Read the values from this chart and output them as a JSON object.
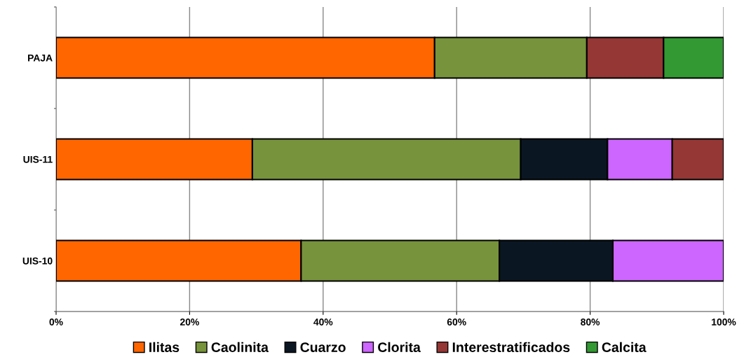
{
  "chart_data": {
    "type": "bar",
    "orientation": "horizontal",
    "stacked": true,
    "categories": [
      "PAJA",
      "UIS-11",
      "UIS-10"
    ],
    "series": [
      {
        "name": "Ilitas",
        "color": "#ff6600",
        "values": [
          56.7,
          29.4,
          36.7
        ]
      },
      {
        "name": "Caolinita",
        "color": "#77933c",
        "values": [
          22.8,
          40.2,
          29.7
        ]
      },
      {
        "name": "Cuarzo",
        "color": "#0b1623",
        "values": [
          null,
          13.0,
          17.0
        ]
      },
      {
        "name": "Clorita",
        "color": "#cc66ff",
        "values": [
          null,
          9.7,
          16.6
        ]
      },
      {
        "name": "Interestratificados",
        "color": "#953735",
        "values": [
          11.5,
          7.7,
          null
        ]
      },
      {
        "name": "Calcita",
        "color": "#339933",
        "values": [
          9.0,
          null,
          null
        ]
      }
    ],
    "xlim": [
      0,
      100
    ],
    "xticks": [
      {
        "value": 0,
        "label": "0%"
      },
      {
        "value": 20,
        "label": "20%"
      },
      {
        "value": 40,
        "label": "40%"
      },
      {
        "value": 60,
        "label": "60%"
      },
      {
        "value": 80,
        "label": "80%"
      },
      {
        "value": 100,
        "label": "100%"
      }
    ],
    "grid": "x",
    "legend": "bottom"
  }
}
